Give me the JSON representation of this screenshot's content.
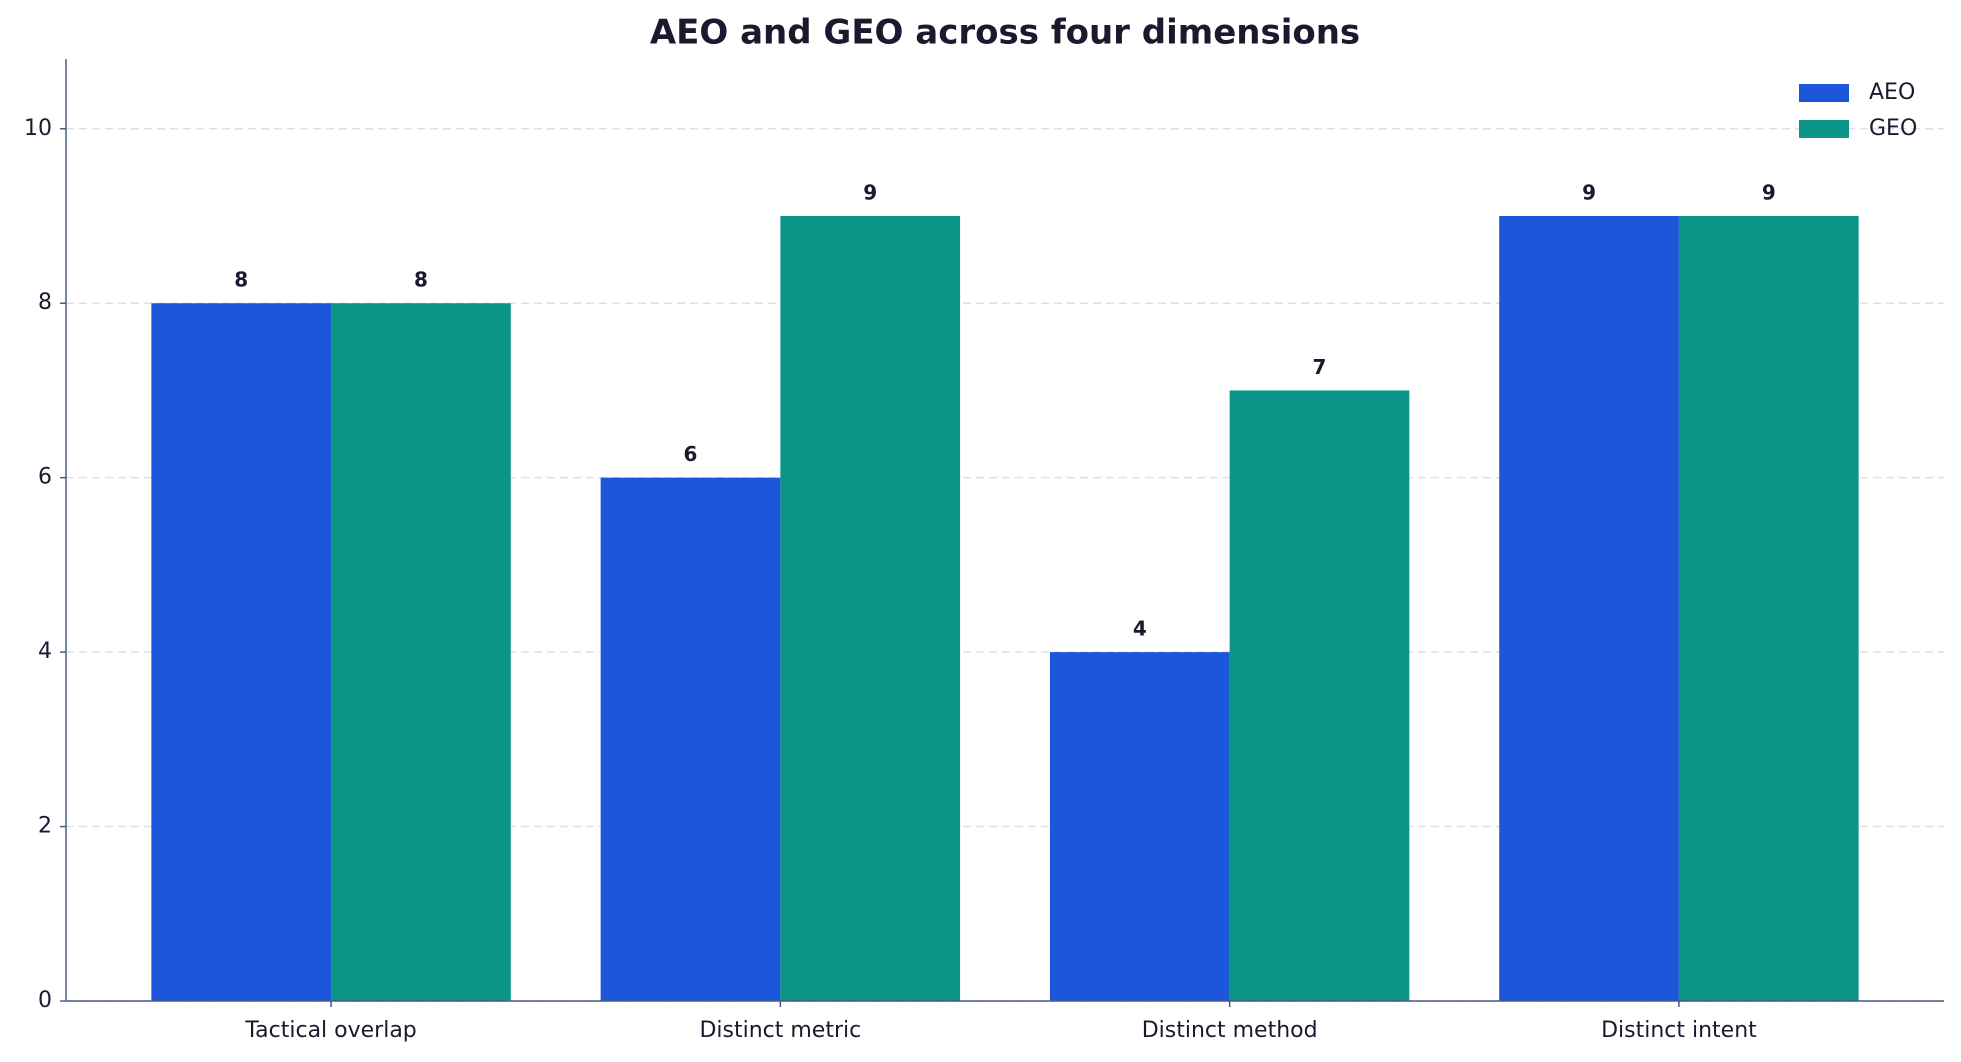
{
  "chart_data": {
    "type": "bar",
    "title": "AEO and GEO across four dimensions",
    "categories": [
      "Tactical overlap",
      "Distinct metric",
      "Distinct method",
      "Distinct intent"
    ],
    "series": [
      {
        "name": "AEO",
        "color": "#1b56db",
        "values": [
          8,
          6,
          4,
          9
        ]
      },
      {
        "name": "GEO",
        "color": "#0d9488",
        "values": [
          8,
          9,
          7,
          9
        ]
      }
    ],
    "ylim": [
      0,
      10.8
    ],
    "yticks": [
      0,
      2,
      4,
      6,
      8,
      10
    ],
    "grid": true,
    "legend": "upper-right"
  }
}
